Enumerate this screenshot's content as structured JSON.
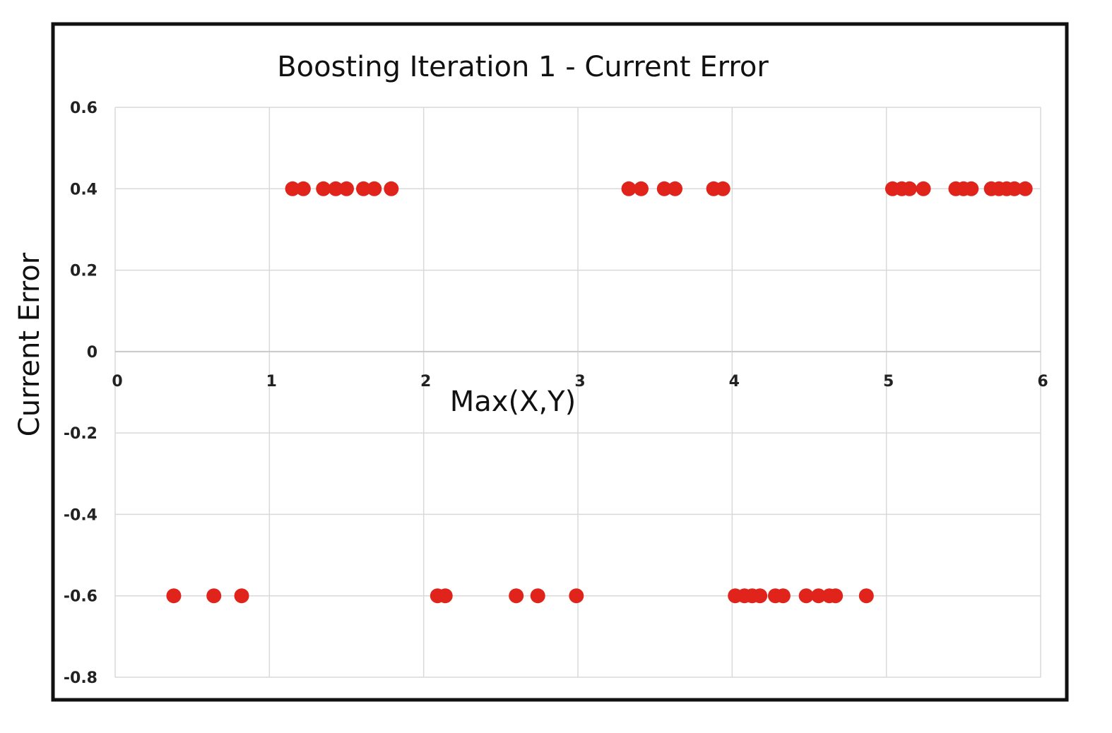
{
  "chart_data": {
    "type": "scatter",
    "title": "Boosting Iteration 1 - Current Error",
    "xlabel": "Max(X,Y)",
    "ylabel": "Current Error",
    "xlim": [
      0,
      6
    ],
    "ylim": [
      -0.8,
      0.6
    ],
    "x_ticks": [
      "0",
      "1",
      "2",
      "3",
      "4",
      "5",
      "6"
    ],
    "y_ticks": [
      "0.6",
      "0.4",
      "0.2",
      "0",
      "-0.2",
      "-0.4",
      "-0.6",
      "-0.8"
    ],
    "grid": true,
    "marker_color": "#e0231b",
    "series": [
      {
        "points": [
          {
            "x": 1.15,
            "y": 0.4
          },
          {
            "x": 1.22,
            "y": 0.4
          },
          {
            "x": 1.35,
            "y": 0.4
          },
          {
            "x": 1.43,
            "y": 0.4
          },
          {
            "x": 1.5,
            "y": 0.4
          },
          {
            "x": 1.61,
            "y": 0.4
          },
          {
            "x": 1.68,
            "y": 0.4
          },
          {
            "x": 1.79,
            "y": 0.4
          },
          {
            "x": 3.33,
            "y": 0.4
          },
          {
            "x": 3.41,
            "y": 0.4
          },
          {
            "x": 3.56,
            "y": 0.4
          },
          {
            "x": 3.63,
            "y": 0.4
          },
          {
            "x": 3.88,
            "y": 0.4
          },
          {
            "x": 3.94,
            "y": 0.4
          },
          {
            "x": 5.04,
            "y": 0.4
          },
          {
            "x": 5.1,
            "y": 0.4
          },
          {
            "x": 5.15,
            "y": 0.4
          },
          {
            "x": 5.24,
            "y": 0.4
          },
          {
            "x": 5.45,
            "y": 0.4
          },
          {
            "x": 5.5,
            "y": 0.4
          },
          {
            "x": 5.55,
            "y": 0.4
          },
          {
            "x": 5.68,
            "y": 0.4
          },
          {
            "x": 5.73,
            "y": 0.4
          },
          {
            "x": 5.78,
            "y": 0.4
          },
          {
            "x": 5.83,
            "y": 0.4
          },
          {
            "x": 5.9,
            "y": 0.4
          },
          {
            "x": 0.38,
            "y": -0.6
          },
          {
            "x": 0.64,
            "y": -0.6
          },
          {
            "x": 0.82,
            "y": -0.6
          },
          {
            "x": 2.09,
            "y": -0.6
          },
          {
            "x": 2.14,
            "y": -0.6
          },
          {
            "x": 2.6,
            "y": -0.6
          },
          {
            "x": 2.74,
            "y": -0.6
          },
          {
            "x": 2.99,
            "y": -0.6
          },
          {
            "x": 4.02,
            "y": -0.6
          },
          {
            "x": 4.08,
            "y": -0.6
          },
          {
            "x": 4.13,
            "y": -0.6
          },
          {
            "x": 4.18,
            "y": -0.6
          },
          {
            "x": 4.28,
            "y": -0.6
          },
          {
            "x": 4.33,
            "y": -0.6
          },
          {
            "x": 4.48,
            "y": -0.6
          },
          {
            "x": 4.56,
            "y": -0.6
          },
          {
            "x": 4.63,
            "y": -0.6
          },
          {
            "x": 4.67,
            "y": -0.6
          },
          {
            "x": 4.87,
            "y": -0.6
          }
        ]
      }
    ]
  }
}
